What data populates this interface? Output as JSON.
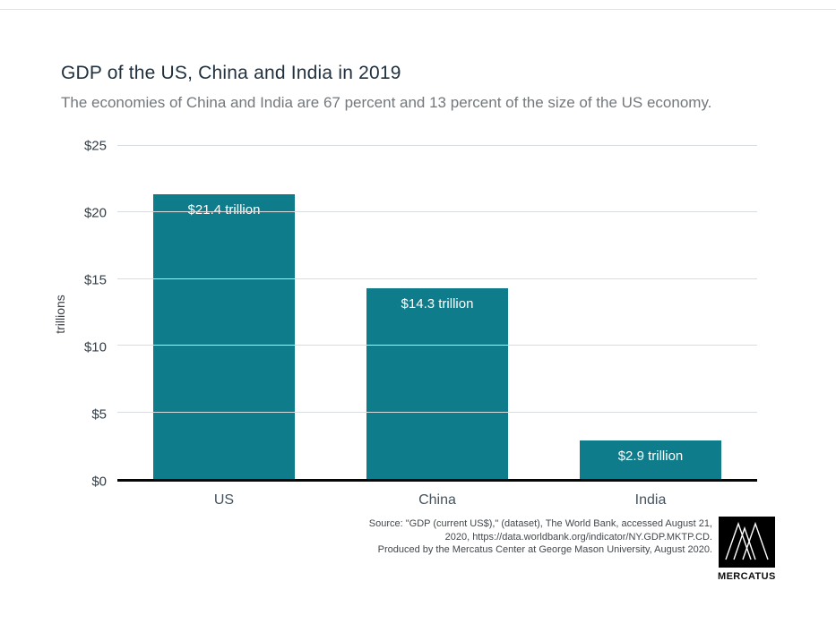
{
  "title": "GDP of the US, China and India in 2019",
  "subtitle": "The economies of China and India are 67 percent and 13 percent of the size of the US economy.",
  "chart_data": {
    "type": "bar",
    "categories": [
      "US",
      "China",
      "India"
    ],
    "values": [
      21.4,
      14.3,
      2.9
    ],
    "bar_labels": [
      "$21.4 trillion",
      "$14.3 trillion",
      "$2.9 trillion"
    ],
    "title": "GDP of the US, China and India in 2019",
    "xlabel": "",
    "ylabel": "trillions",
    "ylim": [
      0,
      25
    ],
    "yticks": [
      "$0",
      "$5",
      "$10",
      "$15",
      "$20",
      "$25"
    ],
    "ytick_values": [
      0,
      5,
      10,
      15,
      20,
      25
    ],
    "bar_color": "#0e7c8a",
    "grid": true,
    "legend": "none"
  },
  "source": {
    "line1": "Source: \"GDP (current US$),\" (dataset), The World Bank, accessed August 21,",
    "line2": "2020, https://data.worldbank.org/indicator/NY.GDP.MKTP.CD.",
    "line3": "Produced by the Mercatus Center at George Mason University, August 2020."
  },
  "logo": {
    "text": "MERCATUS"
  },
  "colors": {
    "bar": "#0e7c8a",
    "title_text": "#21313f",
    "subtitle_text": "#73787c",
    "gridline": "#dadddf",
    "axis": "#060606"
  }
}
